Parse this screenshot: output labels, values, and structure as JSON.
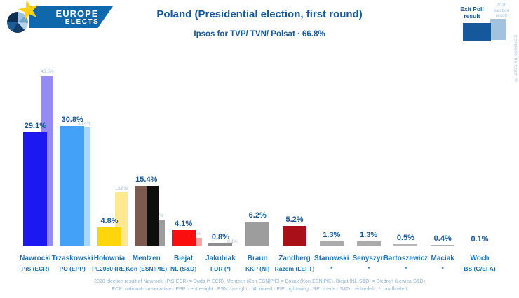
{
  "header": {
    "logo": {
      "line1": "EUROPE",
      "line2": "ELECTS"
    },
    "title": "Poland (Presidential election, first round)",
    "subtitle": "Ipsos for TVP/ TVN/ Polsat · 66.8%",
    "copyright": "© 2025 europeelects"
  },
  "legend": {
    "exit_label": "Exit Poll result",
    "prev_label": "2020 election result",
    "exit_color": "#15599c",
    "prev_color": "#a3c2e0"
  },
  "chart_data": {
    "type": "bar",
    "title": "Poland (Presidential election, first round)",
    "subtitle": "Ipsos for TVP/ TVN/ Polsat · 66.8%",
    "unit": "%",
    "ylim": [
      0,
      45
    ],
    "grid": false,
    "legend_position": "top-right",
    "series_names": [
      "Exit Poll result",
      "2020 election result"
    ],
    "candidates": [
      {
        "name": "Nawrocki",
        "party": "PiS (ECR)",
        "value": 29.1,
        "label": "29.1%",
        "colors": [
          "#1b18f2"
        ],
        "prev_value": 43.5,
        "prev_label": "43.5%",
        "prev_color": "#968bf0"
      },
      {
        "name": "Trzaskowski",
        "party": "PO (EPP)",
        "value": 30.8,
        "label": "30.8%",
        "colors": [
          "#43a1f8"
        ],
        "prev_value": 30.4,
        "prev_label": "30.4%",
        "prev_color": "#abd6fb"
      },
      {
        "name": "Hołownia",
        "party": "PL2050 (RE)",
        "value": 4.8,
        "label": "4.8%",
        "colors": [
          "#ffd60b"
        ],
        "prev_value": 13.8,
        "prev_label": "13.8%",
        "prev_color": "#ffe990"
      },
      {
        "name": "Mentzen",
        "party": "Kon (ESN|PfE)",
        "value": 15.4,
        "label": "15.4%",
        "colors": [
          "#7d5a50",
          "#100d0d"
        ],
        "prev_value": 6.7,
        "prev_label": "6.7%",
        "prev_color": "#9d9d9d"
      },
      {
        "name": "Biejat",
        "party": "NL (S&D)",
        "value": 4.1,
        "label": "4.1%",
        "colors": [
          "#fb0e0e"
        ],
        "prev_value": 2.2,
        "prev_label": "2.2%",
        "prev_color": "#ffa2a2"
      },
      {
        "name": "Jakubiak",
        "party": "FDR (*)",
        "value": 0.8,
        "label": "0.8%",
        "colors": [
          "#8d8d8d"
        ],
        "prev_value": 0.1,
        "prev_label": "0.1%",
        "prev_color": "#cccccc"
      },
      {
        "name": "Braun",
        "party": "KKP (NI)",
        "value": 6.2,
        "label": "6.2%",
        "colors": [
          "#9d9d9d"
        ]
      },
      {
        "name": "Zandberg",
        "party": "Razem (LEFT)",
        "value": 5.2,
        "label": "5.2%",
        "colors": [
          "#a90f18"
        ]
      },
      {
        "name": "Stanowski",
        "party": "*",
        "value": 1.3,
        "label": "1.3%",
        "colors": [
          "#ababab"
        ]
      },
      {
        "name": "Senyszyn",
        "party": "*",
        "value": 1.3,
        "label": "1.3%",
        "colors": [
          "#ababab"
        ]
      },
      {
        "name": "Bartoszewicz",
        "party": "*",
        "value": 0.5,
        "label": "0.5%",
        "colors": [
          "#b5b5b5"
        ]
      },
      {
        "name": "Maciak",
        "party": "*",
        "value": 0.4,
        "label": "0.4%",
        "colors": [
          "#b5b5b5"
        ]
      },
      {
        "name": "Woch",
        "party": "BS (G/EFA)",
        "value": 0.1,
        "label": "0.1%",
        "colors": [
          "#d2d2d2"
        ]
      }
    ]
  },
  "footnotes": {
    "line1": "2020 election result of Nawrocki (PiS-ECR) = Duda (*-ECR), Mentzen (Kon-ESN|PfE) = Bosak (Kon-ESN|PfE), Biejat (NL-S&D) = Biedroń (Lewica-S&D)",
    "line2": "ECR: national-conservative · EPP: centre-right · ESN: far-right · NI: mixed · PfE: right-wing · RE: liberal · S&D: centre-left · *: unaffiliated"
  }
}
